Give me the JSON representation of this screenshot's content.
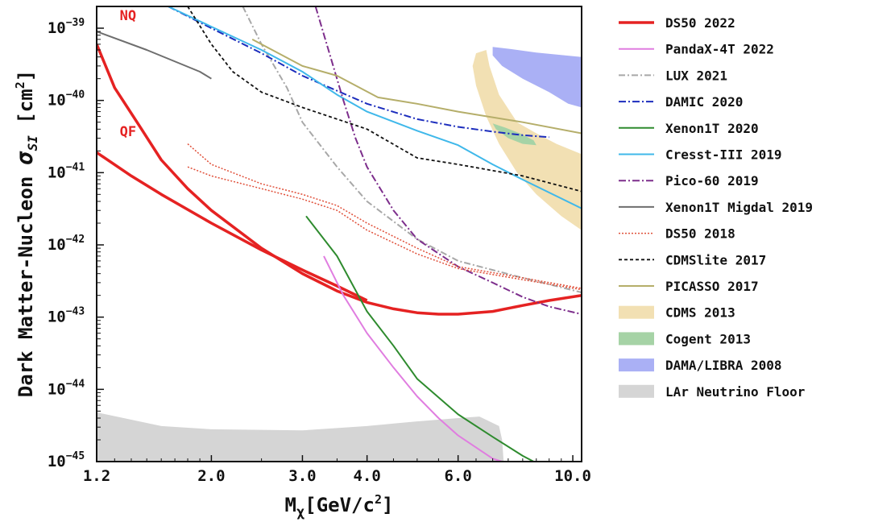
{
  "chart_data": {
    "type": "line",
    "xscale": "log",
    "yscale": "log",
    "xlim": [
      1.2,
      10.4
    ],
    "ylim": [
      1e-45,
      2e-39
    ],
    "xlabel_main": "M",
    "xlabel_sub": "χ",
    "xlabel_unit": "[GeV/c",
    "xlabel_sup": "2",
    "xlabel_end": "]",
    "ylabel_main": "Dark Matter-Nucleon ",
    "ylabel_sigma": "σ",
    "ylabel_sub": "SI",
    "ylabel_unit": " [cm",
    "ylabel_sup": "2",
    "ylabel_end": "]",
    "xticks": [
      {
        "value": 1.2,
        "label": "1.2"
      },
      {
        "value": 2.0,
        "label": "2.0"
      },
      {
        "value": 3.0,
        "label": "3.0"
      },
      {
        "value": 4.0,
        "label": "4.0"
      },
      {
        "value": 6.0,
        "label": "6.0"
      },
      {
        "value": 10.0,
        "label": "10.0"
      }
    ],
    "yticks": [
      {
        "exp": -39,
        "base": "10",
        "label": "−39"
      },
      {
        "exp": -40,
        "base": "10",
        "label": "−40"
      },
      {
        "exp": -41,
        "base": "10",
        "label": "−41"
      },
      {
        "exp": -42,
        "base": "10",
        "label": "−42"
      },
      {
        "exp": -43,
        "base": "10",
        "label": "−43"
      },
      {
        "exp": -44,
        "base": "10",
        "label": "−44"
      },
      {
        "exp": -45,
        "base": "10",
        "label": "−45"
      }
    ],
    "annotations": [
      {
        "text": "NQ",
        "x": 1.33,
        "y": 1.3e-39,
        "color": "#e52222"
      },
      {
        "text": "QF",
        "x": 1.33,
        "y": 3.2e-41,
        "color": "#e52222"
      }
    ],
    "series": [
      {
        "name": "DS50 2022",
        "color": "#e52222",
        "dash": "",
        "width": 3.5,
        "lines": [
          [
            [
              1.2,
              6e-40
            ],
            [
              1.3,
              1.5e-40
            ],
            [
              1.45,
              4.5e-41
            ],
            [
              1.6,
              1.5e-41
            ],
            [
              1.8,
              6e-42
            ],
            [
              2.0,
              3e-42
            ],
            [
              2.5,
              9e-43
            ],
            [
              3.0,
              4e-43
            ],
            [
              3.5,
              2.3e-43
            ],
            [
              4.0,
              1.6e-43
            ],
            [
              4.5,
              1.3e-43
            ],
            [
              5.0,
              1.15e-43
            ],
            [
              5.5,
              1.1e-43
            ],
            [
              6.0,
              1.1e-43
            ],
            [
              7.0,
              1.2e-43
            ],
            [
              8.0,
              1.45e-43
            ],
            [
              9.0,
              1.7e-43
            ],
            [
              10.4,
              2e-43
            ]
          ],
          [
            [
              1.2,
              1.9e-41
            ],
            [
              1.4,
              9e-42
            ],
            [
              1.6,
              5e-42
            ],
            [
              2.0,
              2e-42
            ],
            [
              2.5,
              8.5e-43
            ],
            [
              3.0,
              4.5e-43
            ],
            [
              3.5,
              2.7e-43
            ],
            [
              4.0,
              1.7e-43
            ]
          ]
        ]
      },
      {
        "name": "PandaX-4T 2022",
        "color": "#e07de0",
        "dash": "",
        "width": 2,
        "lines": [
          [
            [
              3.3,
              7e-43
            ],
            [
              3.6,
              2e-43
            ],
            [
              4.0,
              6e-44
            ],
            [
              4.5,
              2e-44
            ],
            [
              5.0,
              8e-45
            ],
            [
              5.5,
              4e-45
            ],
            [
              6.0,
              2.3e-45
            ],
            [
              7.0,
              1.1e-45
            ],
            [
              7.3,
              1e-45
            ]
          ]
        ]
      },
      {
        "name": "LUX 2021",
        "color": "#a8a8a8",
        "dash": "8,3,2,3",
        "width": 2,
        "lines": [
          [
            [
              2.3,
              2e-39
            ],
            [
              2.5,
              6e-40
            ],
            [
              2.8,
              1.5e-40
            ],
            [
              3.0,
              5e-41
            ],
            [
              3.5,
              1.2e-41
            ],
            [
              4.0,
              4e-42
            ],
            [
              5.0,
              1.2e-42
            ],
            [
              6.0,
              6e-43
            ],
            [
              8.0,
              3.5e-43
            ],
            [
              10.4,
              2.2e-43
            ]
          ]
        ]
      },
      {
        "name": "DAMIC 2020",
        "color": "#1c2dbd",
        "dash": "9,3,2,3",
        "width": 2,
        "lines": [
          [
            [
              1.65,
              2e-39
            ],
            [
              2.0,
              1e-39
            ],
            [
              2.5,
              4.5e-40
            ],
            [
              3.0,
              2.2e-40
            ],
            [
              4.0,
              9e-41
            ],
            [
              5.0,
              5.5e-41
            ],
            [
              6.0,
              4.3e-41
            ],
            [
              7.0,
              3.7e-41
            ],
            [
              8.0,
              3.3e-41
            ],
            [
              9.0,
              3.1e-41
            ]
          ]
        ]
      },
      {
        "name": "Xenon1T 2020",
        "color": "#2e8b2e",
        "dash": "",
        "width": 2,
        "lines": [
          [
            [
              3.05,
              2.5e-42
            ],
            [
              3.5,
              7e-43
            ],
            [
              4.0,
              1.2e-43
            ],
            [
              4.5,
              4e-44
            ],
            [
              5.0,
              1.4e-44
            ],
            [
              6.0,
              4.5e-45
            ],
            [
              7.0,
              2.2e-45
            ],
            [
              8.0,
              1.2e-45
            ],
            [
              8.4,
              1e-45
            ]
          ]
        ]
      },
      {
        "name": "Cresst-III 2019",
        "color": "#3fb8ea",
        "dash": "",
        "width": 2,
        "lines": [
          [
            [
              1.65,
              2e-39
            ],
            [
              2.0,
              1.05e-39
            ],
            [
              2.5,
              5e-40
            ],
            [
              3.0,
              2.5e-40
            ],
            [
              3.5,
              1.2e-40
            ],
            [
              4.0,
              7e-41
            ],
            [
              5.0,
              3.8e-41
            ],
            [
              6.0,
              2.4e-41
            ],
            [
              7.0,
              1.3e-41
            ],
            [
              8.0,
              8e-42
            ],
            [
              10.4,
              3.2e-42
            ]
          ]
        ]
      },
      {
        "name": "Pico-60 2019",
        "color": "#7d2e8c",
        "dash": "9,3,2,3",
        "width": 2,
        "lines": [
          [
            [
              3.18,
              2e-39
            ],
            [
              3.4,
              4e-40
            ],
            [
              3.6,
              1e-40
            ],
            [
              3.8,
              3e-41
            ],
            [
              4.0,
              1.2e-41
            ],
            [
              4.5,
              3e-42
            ],
            [
              5.0,
              1.2e-42
            ],
            [
              6.0,
              5e-43
            ],
            [
              7.0,
              3e-43
            ],
            [
              8.0,
              1.9e-43
            ],
            [
              9.0,
              1.4e-43
            ],
            [
              10.4,
              1.1e-43
            ]
          ]
        ]
      },
      {
        "name": "Xenon1T Migdal 2019",
        "color": "#6e6e6e",
        "dash": "",
        "width": 2,
        "lines": [
          [
            [
              1.2,
              9e-40
            ],
            [
              1.5,
              5e-40
            ],
            [
              1.9,
              2.5e-40
            ],
            [
              2.0,
              2e-40
            ]
          ]
        ]
      },
      {
        "name": "DS50 2018",
        "color": "#e0503a",
        "dash": "2,2",
        "width": 1.5,
        "lines": [
          [
            [
              1.8,
              2.5e-41
            ],
            [
              2.0,
              1.3e-41
            ],
            [
              2.5,
              7e-42
            ],
            [
              3.0,
              5e-42
            ],
            [
              3.5,
              3.5e-42
            ],
            [
              4.0,
              2e-42
            ],
            [
              5.0,
              9e-43
            ],
            [
              6.0,
              5e-43
            ],
            [
              8.0,
              3.5e-43
            ],
            [
              10.4,
              2.5e-43
            ]
          ],
          [
            [
              1.8,
              1.2e-41
            ],
            [
              2.0,
              9e-42
            ],
            [
              2.5,
              6e-42
            ],
            [
              3.0,
              4.3e-42
            ],
            [
              3.5,
              3e-42
            ],
            [
              4.0,
              1.6e-42
            ],
            [
              5.0,
              7.5e-43
            ],
            [
              6.0,
              4.7e-43
            ],
            [
              8.0,
              3.3e-43
            ],
            [
              10.4,
              2.4e-43
            ]
          ]
        ]
      },
      {
        "name": "CDMSlite 2017",
        "color": "#111111",
        "dash": "4,3",
        "width": 1.8,
        "lines": [
          [
            [
              1.8,
              2e-39
            ],
            [
              2.0,
              6e-40
            ],
            [
              2.2,
              2.5e-40
            ],
            [
              2.5,
              1.3e-40
            ],
            [
              3.0,
              8e-41
            ],
            [
              4.0,
              4e-41
            ],
            [
              5.0,
              1.6e-41
            ],
            [
              6.0,
              1.3e-41
            ],
            [
              8.0,
              9e-42
            ],
            [
              10.4,
              5.5e-42
            ]
          ]
        ]
      },
      {
        "name": "PICASSO 2017",
        "color": "#b5ae6a",
        "dash": "",
        "width": 2,
        "lines": [
          [
            [
              2.4,
              7e-40
            ],
            [
              3.0,
              3e-40
            ],
            [
              3.5,
              2.2e-40
            ],
            [
              4.2,
              1.1e-40
            ],
            [
              5.0,
              9e-41
            ],
            [
              6.0,
              7e-41
            ],
            [
              8.0,
              5e-41
            ],
            [
              10.4,
              3.5e-41
            ]
          ]
        ]
      },
      {
        "name": "CDMS 2013",
        "color": "#f2e0b3",
        "kind": "area",
        "polygon": [
          [
            6.5,
            4.5e-40
          ],
          [
            6.8,
            5e-40
          ],
          [
            6.9,
            3e-40
          ],
          [
            7.2,
            1.2e-40
          ],
          [
            7.8,
            5e-41
          ],
          [
            8.5,
            3.5e-41
          ],
          [
            9.3,
            2.5e-41
          ],
          [
            10.4,
            1.8e-41
          ],
          [
            10.4,
            1.6e-42
          ],
          [
            9.5,
            2.5e-42
          ],
          [
            8.5,
            5e-42
          ],
          [
            7.8,
            1e-41
          ],
          [
            7.2,
            2.5e-41
          ],
          [
            6.8,
            6e-41
          ],
          [
            6.5,
            1.6e-40
          ],
          [
            6.4,
            3e-40
          ]
        ]
      },
      {
        "name": "Cogent 2013",
        "color": "#a6d3a6",
        "kind": "area",
        "polygon": [
          [
            7.0,
            4.8e-41
          ],
          [
            7.4,
            4.2e-41
          ],
          [
            7.9,
            3.5e-41
          ],
          [
            8.4,
            2.8e-41
          ],
          [
            8.5,
            2.4e-41
          ],
          [
            8.0,
            2.5e-41
          ],
          [
            7.5,
            3e-41
          ],
          [
            7.1,
            4e-41
          ]
        ]
      },
      {
        "name": "DAMA/LIBRA 2008",
        "color": "#aab0f5",
        "kind": "area",
        "polygon": [
          [
            7.0,
            5.5e-40
          ],
          [
            7.5,
            5.2e-40
          ],
          [
            8.5,
            4.6e-40
          ],
          [
            10.4,
            4e-40
          ],
          [
            10.4,
            8e-41
          ],
          [
            9.8,
            9e-41
          ],
          [
            9.0,
            1.3e-40
          ],
          [
            8.0,
            2e-40
          ],
          [
            7.3,
            3e-40
          ],
          [
            7.0,
            4.2e-40
          ]
        ]
      },
      {
        "name": "LAr Neutrino Floor",
        "color": "#d5d5d5",
        "kind": "area",
        "polygon": [
          [
            1.2,
            1e-45
          ],
          [
            1.2,
            4.8e-45
          ],
          [
            1.4,
            3.8e-45
          ],
          [
            1.6,
            3.1e-45
          ],
          [
            2.0,
            2.8e-45
          ],
          [
            3.0,
            2.7e-45
          ],
          [
            4.0,
            3.1e-45
          ],
          [
            5.0,
            3.6e-45
          ],
          [
            6.0,
            4e-45
          ],
          [
            6.6,
            4.2e-45
          ],
          [
            7.2,
            3.1e-45
          ],
          [
            7.3,
            2e-45
          ],
          [
            7.35,
            1e-45
          ]
        ]
      }
    ]
  }
}
